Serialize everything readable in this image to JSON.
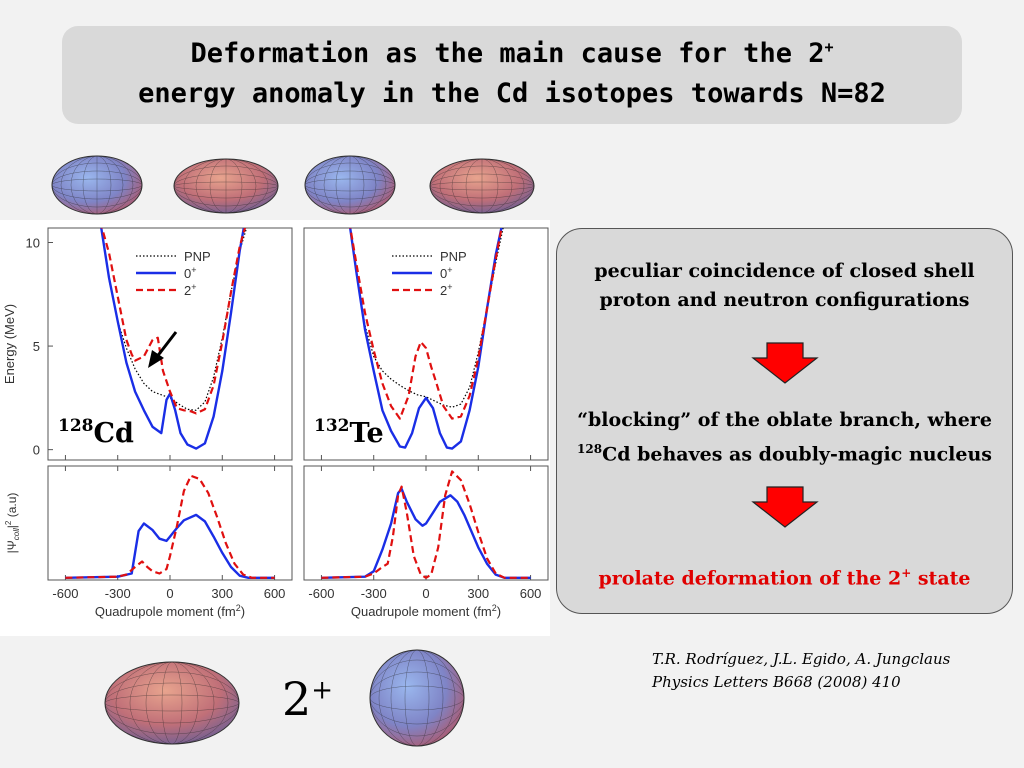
{
  "title": {
    "line1_text": "Deformation as the main cause for the 2",
    "line1_sup": "+",
    "line2": "energy anomaly in the Cd isotopes towards N=82"
  },
  "shapes": {
    "top_row": [
      "oblate-spheroid-icon",
      "prolate-spheroid-icon",
      "oblate-spheroid-icon",
      "prolate-spheroid-icon"
    ],
    "bottom_row": [
      "prolate-spheroid-icon",
      "oblate-spheroid-icon"
    ]
  },
  "panel": {
    "statement1_line1": "peculiar coincidence of closed shell",
    "statement1_line2": "proton and neutron configurations",
    "statement2_line1": "“blocking” of the oblate branch, where",
    "statement2_sup": "128",
    "statement2_line2_rest": "Cd behaves as doubly-magic nucleus",
    "conclusion_text": "prolate deformation of the 2",
    "conclusion_sup": "+",
    "conclusion_end": " state",
    "arrow_color": "#ff0000"
  },
  "reference": {
    "authors": "T.R. Rodríguez, J.L. Egido, A. Jungclaus",
    "journal": "Physics Letters B668 (2008) 410"
  },
  "state_label": {
    "text": "2",
    "sup": "+"
  },
  "colors": {
    "pnp": "#000000",
    "zero_plus": "#1a2ee6",
    "two_plus": "#e01010",
    "red_text": "#e00000"
  },
  "chart_data": [
    {
      "type": "line",
      "nucleus_mass": "128",
      "nucleus_symbol": "Cd",
      "ylabel_top": "Energy (MeV)",
      "ylabel_bottom": "|Ψ",
      "ylabel_bottom_sub": "coll",
      "ylabel_bottom_rest": "|",
      "ylabel_bottom_sup": "2",
      "ylabel_bottom_unit": " (a.u)",
      "xlabel": "Quadrupole moment (fm",
      "xlabel_sup": "2",
      "xlabel_end": ")",
      "xlim": [
        -700,
        700
      ],
      "ylim_top": [
        -0.5,
        10.7
      ],
      "ylim_bottom": [
        0,
        1.05
      ],
      "xticks": [
        -600,
        -300,
        0,
        300,
        600
      ],
      "yticks_top": [
        0,
        5,
        10
      ],
      "legend_position": "top-right",
      "series": [
        {
          "name": "PNP",
          "style": "dotted",
          "panel": "energy",
          "x": [
            -400,
            -350,
            -300,
            -250,
            -200,
            -150,
            -100,
            -50,
            0,
            50,
            100,
            150,
            200,
            250,
            300,
            350,
            400,
            450
          ],
          "y": [
            11,
            8.2,
            6.2,
            4.9,
            3.9,
            3.2,
            2.8,
            2.65,
            2.5,
            2.2,
            1.95,
            1.9,
            2.3,
            3.5,
            5.4,
            7.6,
            9.6,
            11
          ]
        },
        {
          "name": "0",
          "name_sup": "+",
          "style": "solid",
          "panel": "energy",
          "x": [
            -400,
            -350,
            -300,
            -250,
            -200,
            -150,
            -100,
            -50,
            -20,
            0,
            30,
            60,
            100,
            150,
            200,
            250,
            300,
            350,
            400,
            430
          ],
          "y": [
            11,
            8.3,
            6.2,
            4.2,
            2.8,
            1.9,
            1.1,
            0.8,
            2.4,
            2.7,
            1.9,
            0.8,
            0.25,
            0.05,
            0.3,
            1.6,
            3.8,
            6.6,
            9.6,
            11
          ]
        },
        {
          "name": "2",
          "name_sup": "+",
          "style": "dashed",
          "panel": "energy",
          "x": [
            -400,
            -350,
            -300,
            -250,
            -220,
            -200,
            -150,
            -100,
            -70,
            -40,
            0,
            40,
            80,
            120,
            150,
            200,
            250,
            300,
            350,
            400,
            440
          ],
          "y": [
            11,
            9.5,
            7.4,
            5.3,
            4.6,
            4.3,
            4.5,
            5.3,
            5.4,
            3.8,
            2.8,
            2.0,
            1.9,
            1.85,
            1.75,
            1.95,
            3.1,
            5.2,
            7.6,
            9.8,
            11
          ]
        },
        {
          "name": "0",
          "name_sup": "+",
          "style": "solid",
          "panel": "wavefunction",
          "x": [
            -600,
            -300,
            -220,
            -180,
            -150,
            -100,
            -60,
            -20,
            0,
            40,
            80,
            150,
            200,
            250,
            300,
            350,
            400,
            450,
            600
          ],
          "y": [
            0.02,
            0.03,
            0.06,
            0.45,
            0.52,
            0.46,
            0.38,
            0.36,
            0.4,
            0.48,
            0.55,
            0.6,
            0.54,
            0.4,
            0.25,
            0.12,
            0.04,
            0.02,
            0.02
          ]
        },
        {
          "name": "2",
          "name_sup": "+",
          "style": "dashed",
          "panel": "wavefunction",
          "x": [
            -600,
            -300,
            -250,
            -200,
            -160,
            -130,
            -100,
            -60,
            -20,
            0,
            40,
            80,
            120,
            170,
            220,
            270,
            320,
            370,
            420,
            470,
            600
          ],
          "y": [
            0.02,
            0.03,
            0.05,
            0.12,
            0.17,
            0.12,
            0.08,
            0.06,
            0.1,
            0.22,
            0.5,
            0.82,
            0.96,
            0.93,
            0.8,
            0.58,
            0.34,
            0.15,
            0.05,
            0.02,
            0.02
          ]
        }
      ]
    },
    {
      "type": "line",
      "nucleus_mass": "132",
      "nucleus_symbol": "Te",
      "xlabel": "Quadrupole moment (fm",
      "xlabel_sup": "2",
      "xlabel_end": ")",
      "xlim": [
        -700,
        700
      ],
      "ylim_top": [
        -0.5,
        10.7
      ],
      "ylim_bottom": [
        0,
        1.05
      ],
      "xticks": [
        -600,
        -300,
        0,
        300,
        600
      ],
      "legend_position": "top-right",
      "series": [
        {
          "name": "PNP",
          "style": "dotted",
          "panel": "energy",
          "x": [
            -440,
            -400,
            -350,
            -300,
            -250,
            -200,
            -150,
            -100,
            -50,
            0,
            50,
            100,
            150,
            200,
            250,
            300,
            350,
            400,
            450
          ],
          "y": [
            11,
            8.5,
            6.0,
            4.5,
            3.8,
            3.4,
            3.1,
            2.85,
            2.65,
            2.55,
            2.35,
            2.15,
            2.05,
            2.2,
            3.0,
            4.7,
            6.8,
            9.0,
            11
          ]
        },
        {
          "name": "0",
          "name_sup": "+",
          "style": "solid",
          "panel": "energy",
          "x": [
            -440,
            -400,
            -350,
            -300,
            -250,
            -200,
            -150,
            -120,
            -80,
            -40,
            0,
            40,
            80,
            120,
            150,
            200,
            250,
            300,
            350,
            400,
            440
          ],
          "y": [
            11,
            8.6,
            5.8,
            3.8,
            1.9,
            0.9,
            0.15,
            0.1,
            0.8,
            2.0,
            2.5,
            2.0,
            0.8,
            0.1,
            0.05,
            0.4,
            1.9,
            4.0,
            6.8,
            9.4,
            11
          ]
        },
        {
          "name": "2",
          "name_sup": "+",
          "style": "dashed",
          "panel": "energy",
          "x": [
            -440,
            -400,
            -350,
            -300,
            -250,
            -200,
            -150,
            -100,
            -60,
            -30,
            0,
            30,
            60,
            100,
            150,
            200,
            250,
            300,
            350,
            400,
            440
          ],
          "y": [
            11,
            9.0,
            6.6,
            4.8,
            3.2,
            2.1,
            1.5,
            2.6,
            4.5,
            5.2,
            4.9,
            4.0,
            3.2,
            2.1,
            1.5,
            1.6,
            2.6,
            4.4,
            6.8,
            9.2,
            11
          ]
        },
        {
          "name": "0",
          "name_sup": "+",
          "style": "solid",
          "panel": "wavefunction",
          "x": [
            -600,
            -350,
            -300,
            -250,
            -200,
            -160,
            -140,
            -110,
            -60,
            -20,
            0,
            40,
            80,
            140,
            180,
            220,
            260,
            300,
            350,
            400,
            450,
            600
          ],
          "y": [
            0.02,
            0.03,
            0.08,
            0.28,
            0.52,
            0.8,
            0.84,
            0.72,
            0.56,
            0.5,
            0.52,
            0.62,
            0.72,
            0.78,
            0.72,
            0.6,
            0.45,
            0.3,
            0.15,
            0.05,
            0.02,
            0.02
          ]
        },
        {
          "name": "2",
          "name_sup": "+",
          "style": "dashed",
          "panel": "wavefunction",
          "x": [
            -600,
            -350,
            -300,
            -250,
            -220,
            -190,
            -160,
            -140,
            -110,
            -70,
            -30,
            0,
            30,
            70,
            110,
            150,
            200,
            250,
            300,
            350,
            400,
            450,
            600
          ],
          "y": [
            0.02,
            0.03,
            0.06,
            0.12,
            0.15,
            0.4,
            0.78,
            0.86,
            0.62,
            0.22,
            0.05,
            0.02,
            0.05,
            0.3,
            0.78,
            1.0,
            0.92,
            0.7,
            0.44,
            0.2,
            0.06,
            0.02,
            0.02
          ]
        }
      ]
    }
  ]
}
